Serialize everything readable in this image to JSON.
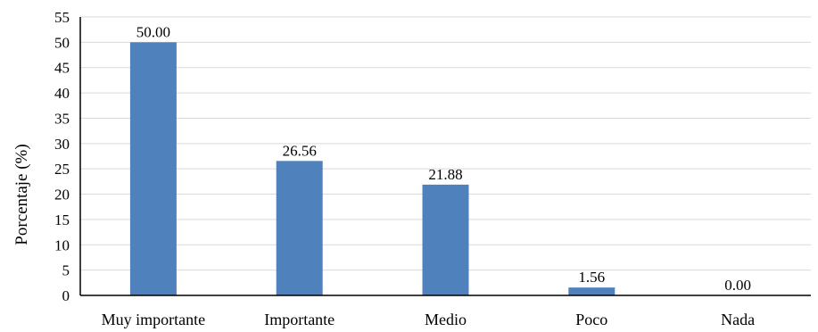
{
  "chart_data": {
    "type": "bar",
    "title": "",
    "xlabel": "",
    "ylabel": "Porcentaje (%)",
    "categories": [
      "Muy importante",
      "Importante",
      "Medio",
      "Poco",
      "Nada"
    ],
    "values": [
      50.0,
      26.56,
      21.88,
      1.56,
      0.0
    ],
    "data_labels": [
      "50.00",
      "26.56",
      "21.88",
      "1.56",
      "0.00"
    ],
    "ylim": [
      0,
      55
    ],
    "yticks": [
      0,
      5,
      10,
      15,
      20,
      25,
      30,
      35,
      40,
      45,
      50,
      55
    ],
    "grid": true,
    "legend": "none",
    "colors": {
      "bar": "#4f81bd",
      "grid": "#d9d9d9",
      "axis": "#000000"
    }
  }
}
